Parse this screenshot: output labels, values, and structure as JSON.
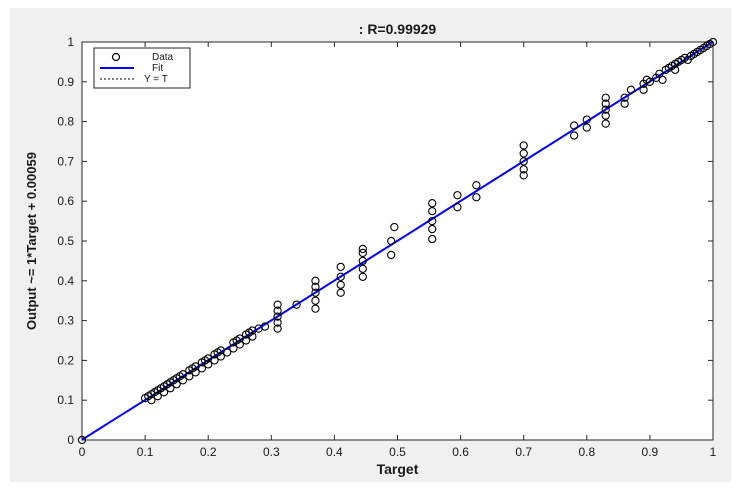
{
  "chart_data": {
    "type": "scatter",
    "title": ": R=0.99929",
    "xlabel": "Target",
    "ylabel": "Output ~= 1*Target + 0.00059",
    "xlim": [
      0,
      1
    ],
    "ylim": [
      0,
      1
    ],
    "grid": false,
    "legend": {
      "placement": "top-left",
      "entries": [
        "Data",
        "Fit",
        "Y = T"
      ]
    },
    "xticks": [
      0,
      0.1,
      0.2,
      0.3,
      0.4,
      0.5,
      0.6,
      0.7,
      0.8,
      0.9,
      1
    ],
    "yticks": [
      0,
      0.1,
      0.2,
      0.3,
      0.4,
      0.5,
      0.6,
      0.7,
      0.8,
      0.9,
      1
    ],
    "fit": {
      "slope": 1,
      "intercept": 0.00059,
      "color": "#0000ff"
    },
    "identity_line_color": "#000000",
    "marker_color": "#000000",
    "series": [
      {
        "name": "Data",
        "points": [
          [
            0,
            0.0
          ],
          [
            0.1,
            0.105
          ],
          [
            0.105,
            0.11
          ],
          [
            0.11,
            0.1
          ],
          [
            0.11,
            0.115
          ],
          [
            0.115,
            0.12
          ],
          [
            0.12,
            0.11
          ],
          [
            0.12,
            0.125
          ],
          [
            0.125,
            0.13
          ],
          [
            0.13,
            0.12
          ],
          [
            0.13,
            0.135
          ],
          [
            0.135,
            0.14
          ],
          [
            0.14,
            0.13
          ],
          [
            0.14,
            0.145
          ],
          [
            0.145,
            0.15
          ],
          [
            0.15,
            0.14
          ],
          [
            0.15,
            0.155
          ],
          [
            0.155,
            0.16
          ],
          [
            0.16,
            0.15
          ],
          [
            0.16,
            0.165
          ],
          [
            0.17,
            0.16
          ],
          [
            0.17,
            0.175
          ],
          [
            0.175,
            0.18
          ],
          [
            0.18,
            0.17
          ],
          [
            0.18,
            0.185
          ],
          [
            0.19,
            0.18
          ],
          [
            0.19,
            0.195
          ],
          [
            0.195,
            0.2
          ],
          [
            0.2,
            0.19
          ],
          [
            0.2,
            0.205
          ],
          [
            0.21,
            0.2
          ],
          [
            0.21,
            0.215
          ],
          [
            0.215,
            0.22
          ],
          [
            0.22,
            0.21
          ],
          [
            0.22,
            0.225
          ],
          [
            0.23,
            0.22
          ],
          [
            0.24,
            0.23
          ],
          [
            0.24,
            0.245
          ],
          [
            0.245,
            0.25
          ],
          [
            0.25,
            0.24
          ],
          [
            0.25,
            0.255
          ],
          [
            0.26,
            0.25
          ],
          [
            0.26,
            0.265
          ],
          [
            0.265,
            0.27
          ],
          [
            0.27,
            0.26
          ],
          [
            0.27,
            0.275
          ],
          [
            0.28,
            0.28
          ],
          [
            0.29,
            0.285
          ],
          [
            0.31,
            0.28
          ],
          [
            0.31,
            0.295
          ],
          [
            0.31,
            0.31
          ],
          [
            0.31,
            0.325
          ],
          [
            0.31,
            0.34
          ],
          [
            0.34,
            0.34
          ],
          [
            0.37,
            0.33
          ],
          [
            0.37,
            0.35
          ],
          [
            0.37,
            0.37
          ],
          [
            0.37,
            0.385
          ],
          [
            0.37,
            0.4
          ],
          [
            0.41,
            0.37
          ],
          [
            0.41,
            0.39
          ],
          [
            0.41,
            0.41
          ],
          [
            0.41,
            0.435
          ],
          [
            0.445,
            0.41
          ],
          [
            0.445,
            0.43
          ],
          [
            0.445,
            0.45
          ],
          [
            0.445,
            0.47
          ],
          [
            0.445,
            0.48
          ],
          [
            0.49,
            0.465
          ],
          [
            0.49,
            0.5
          ],
          [
            0.495,
            0.535
          ],
          [
            0.555,
            0.505
          ],
          [
            0.555,
            0.53
          ],
          [
            0.555,
            0.55
          ],
          [
            0.555,
            0.575
          ],
          [
            0.555,
            0.595
          ],
          [
            0.595,
            0.585
          ],
          [
            0.595,
            0.615
          ],
          [
            0.625,
            0.61
          ],
          [
            0.625,
            0.64
          ],
          [
            0.7,
            0.665
          ],
          [
            0.7,
            0.68
          ],
          [
            0.7,
            0.7
          ],
          [
            0.7,
            0.72
          ],
          [
            0.7,
            0.74
          ],
          [
            0.78,
            0.765
          ],
          [
            0.78,
            0.79
          ],
          [
            0.8,
            0.785
          ],
          [
            0.8,
            0.805
          ],
          [
            0.83,
            0.795
          ],
          [
            0.83,
            0.815
          ],
          [
            0.83,
            0.83
          ],
          [
            0.83,
            0.845
          ],
          [
            0.83,
            0.86
          ],
          [
            0.86,
            0.845
          ],
          [
            0.86,
            0.86
          ],
          [
            0.87,
            0.88
          ],
          [
            0.89,
            0.88
          ],
          [
            0.89,
            0.895
          ],
          [
            0.895,
            0.905
          ],
          [
            0.9,
            0.9
          ],
          [
            0.91,
            0.91
          ],
          [
            0.915,
            0.92
          ],
          [
            0.92,
            0.905
          ],
          [
            0.925,
            0.93
          ],
          [
            0.93,
            0.935
          ],
          [
            0.935,
            0.94
          ],
          [
            0.94,
            0.93
          ],
          [
            0.94,
            0.945
          ],
          [
            0.945,
            0.95
          ],
          [
            0.95,
            0.955
          ],
          [
            0.955,
            0.96
          ],
          [
            0.96,
            0.955
          ],
          [
            0.965,
            0.965
          ],
          [
            0.97,
            0.97
          ],
          [
            0.975,
            0.975
          ],
          [
            0.98,
            0.98
          ],
          [
            0.985,
            0.985
          ],
          [
            0.99,
            0.99
          ],
          [
            0.995,
            0.995
          ],
          [
            1.0,
            1.0
          ]
        ]
      }
    ]
  }
}
